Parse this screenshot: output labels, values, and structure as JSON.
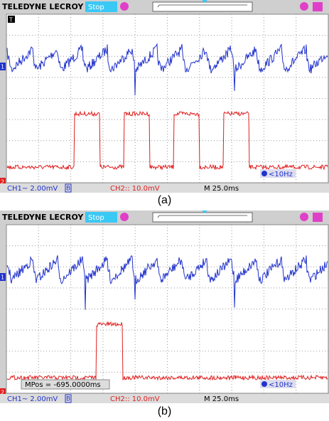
{
  "panels": [
    {
      "brand": "TELEDYNE LECROY",
      "status": "Stop",
      "trigger_marker": "T",
      "ch1_marker": "1",
      "ch2_marker": "2",
      "ch1_label": "CH1~ 2.00mV",
      "bw_flag": "B",
      "ch2_label": "CH2:: 10.0mV",
      "timebase": "M 25.0ms",
      "trigger_freq": "<10Hz",
      "caption": "(a)"
    },
    {
      "brand": "TELEDYNE LECROY",
      "status": "Stop",
      "ch1_marker": "1",
      "ch2_marker": "2",
      "ch1_label": "CH1~ 2.00mV",
      "bw_flag": "B",
      "ch2_label": "CH2:: 10.0mV",
      "timebase": "M 25.0ms",
      "trigger_freq": "<10Hz",
      "mpos": "MPos = -695.0000ms",
      "caption": "(b)"
    }
  ]
}
